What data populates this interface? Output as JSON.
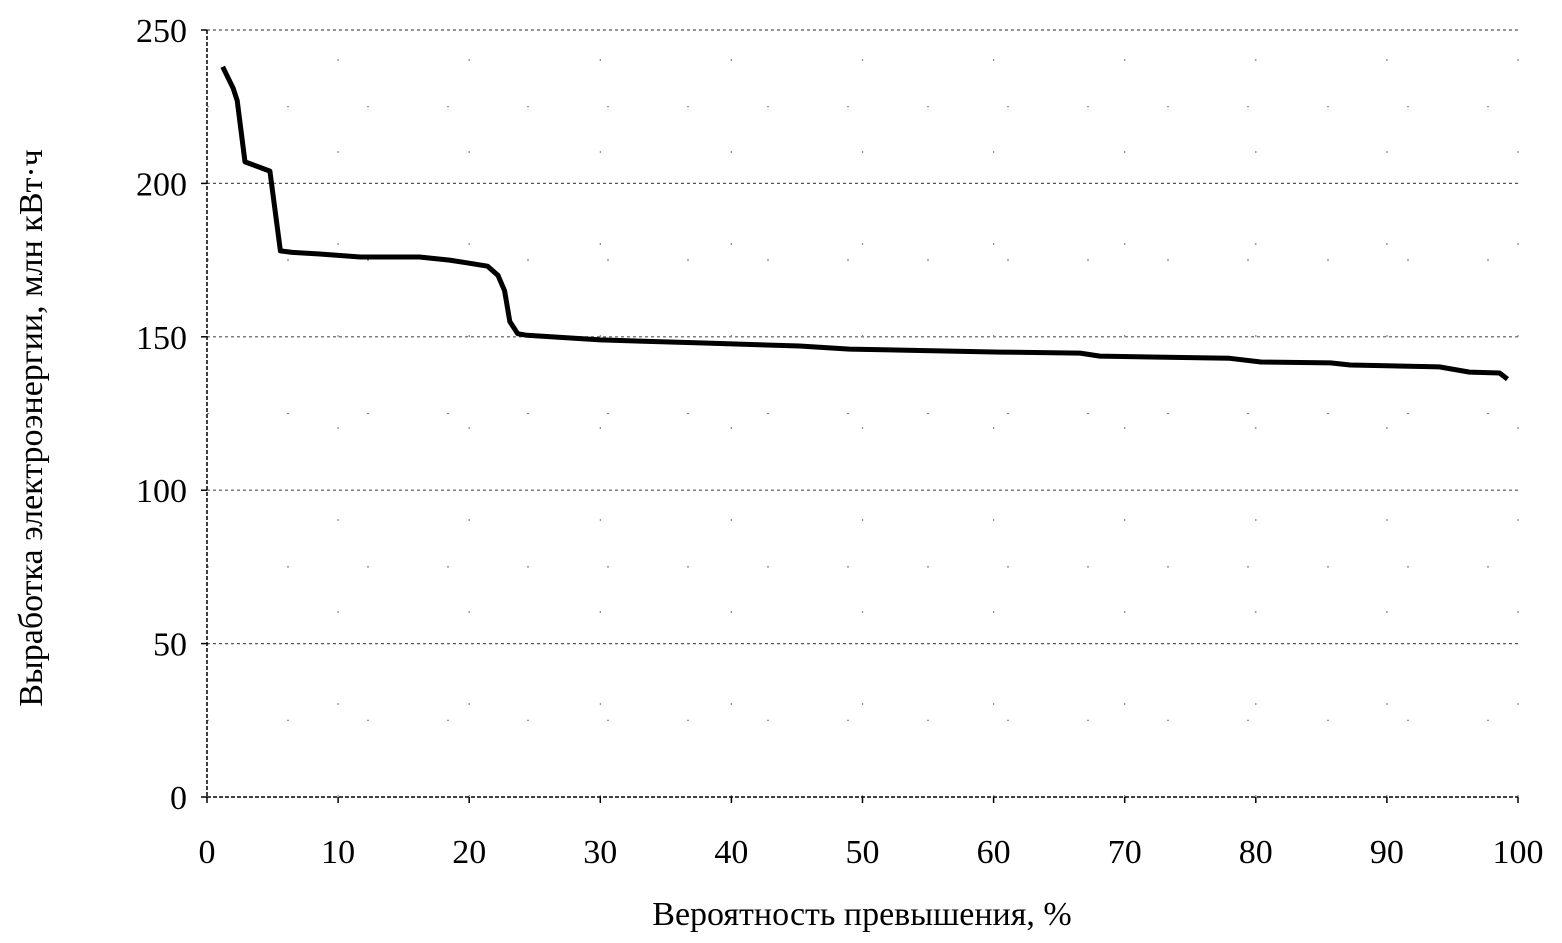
{
  "chart_data": {
    "type": "line",
    "title": "",
    "xlabel": "Вероятность превышения, %",
    "ylabel": "Выработка электроэнергии, млн кВт·ч",
    "xlim": [
      0,
      100
    ],
    "ylim": [
      0,
      250
    ],
    "xticks": [
      0,
      10,
      20,
      30,
      40,
      50,
      60,
      70,
      80,
      90,
      100
    ],
    "yticks": [
      0,
      50,
      100,
      150,
      200,
      250
    ],
    "grid": true,
    "line_color": "#000000",
    "series": [
      {
        "x": [
          1.2,
          2.0,
          2.3,
          2.9,
          4.8,
          5.6,
          6.5,
          8.6,
          11.7,
          16.2,
          18.5,
          20.0,
          21.4,
          22.2,
          22.7,
          23.1,
          23.7,
          24.4,
          30.0,
          37.6,
          45.2,
          49.0,
          60.5,
          66.6,
          68.1,
          78.0,
          80.4,
          85.7,
          87.2,
          94.0,
          96.3,
          98.6,
          99.2
        ],
        "y": [
          238,
          231,
          227,
          207,
          204,
          178,
          177.5,
          177,
          176,
          176,
          175,
          174,
          173,
          170,
          165,
          155,
          151,
          150.5,
          149,
          148,
          147,
          146,
          145,
          144.7,
          143.7,
          143,
          141.8,
          141.5,
          140.8,
          140.2,
          138.5,
          138.2,
          136.2
        ]
      }
    ]
  }
}
